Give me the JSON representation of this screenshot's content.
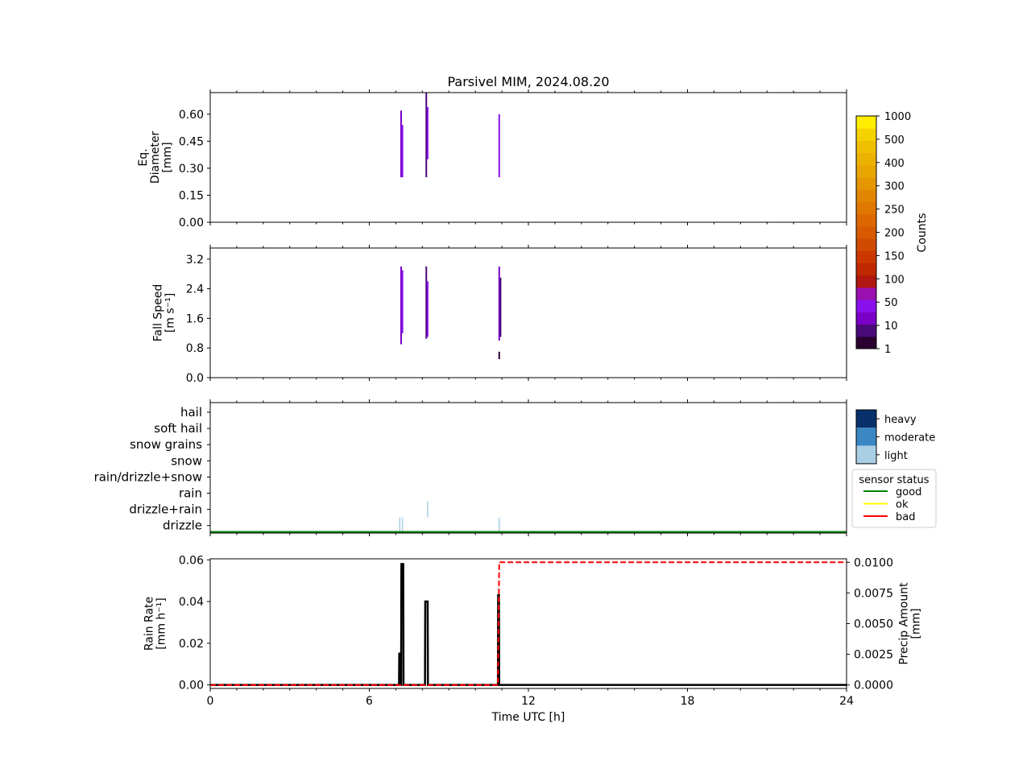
{
  "title": "Parsivel MIM, 2024.08.20",
  "chart_data": [
    {
      "panel": "diameter",
      "type": "heatmap",
      "ylabel_lines": [
        "Eq.",
        "Diameter",
        "[mm]"
      ],
      "ylim": [
        0,
        0.72
      ],
      "yticks": [
        0.0,
        0.15,
        0.3,
        0.45,
        0.6
      ],
      "ytick_labels": [
        "0.00",
        "0.15",
        "0.30",
        "0.45",
        "0.60"
      ],
      "xlim": [
        0,
        24
      ],
      "bins": [
        {
          "t": 7.2,
          "y0": 0.25,
          "y1": 0.62,
          "color": "#7b00c8"
        },
        {
          "t": 7.25,
          "y0": 0.25,
          "y1": 0.54,
          "color": "#8a10ee"
        },
        {
          "t": 8.15,
          "y0": 0.25,
          "y1": 0.72,
          "color": "#4a0a7a"
        },
        {
          "t": 8.2,
          "y0": 0.35,
          "y1": 0.64,
          "color": "#8a10ee"
        },
        {
          "t": 10.9,
          "y0": 0.25,
          "y1": 0.6,
          "color": "#8a10ee"
        }
      ]
    },
    {
      "panel": "fallspeed",
      "type": "heatmap",
      "ylabel_lines": [
        "Fall Speed",
        "[m s⁻¹]"
      ],
      "ylim": [
        0,
        3.5
      ],
      "yticks": [
        0.0,
        0.8,
        1.6,
        2.4,
        3.2
      ],
      "ytick_labels": [
        "0.0",
        "0.8",
        "1.6",
        "2.4",
        "3.2"
      ],
      "xlim": [
        0,
        24
      ],
      "bins": [
        {
          "t": 7.2,
          "y0": 0.9,
          "y1": 3.0,
          "color": "#7b00c8"
        },
        {
          "t": 7.25,
          "y0": 1.2,
          "y1": 2.9,
          "color": "#8a10ee"
        },
        {
          "t": 8.15,
          "y0": 1.05,
          "y1": 3.0,
          "color": "#4a0a7a"
        },
        {
          "t": 8.2,
          "y0": 1.1,
          "y1": 2.6,
          "color": "#8a10ee"
        },
        {
          "t": 10.9,
          "y0": 1.0,
          "y1": 3.0,
          "color": "#7b00c8"
        },
        {
          "t": 10.95,
          "y0": 1.1,
          "y1": 2.7,
          "color": "#4a0a7a"
        },
        {
          "t": 10.9,
          "y0": 0.5,
          "y1": 0.7,
          "color": "#2a0030"
        }
      ]
    },
    {
      "panel": "precip_type",
      "type": "heatmap",
      "categories": [
        "hail",
        "soft hail",
        "snow grains",
        "snow",
        "rain/drizzle+snow",
        "rain",
        "drizzle+rain",
        "drizzle"
      ],
      "xlim": [
        0,
        24
      ],
      "intensity_legend": [
        {
          "label": "heavy",
          "color": "#08306b"
        },
        {
          "label": "moderate",
          "color": "#3a87c4"
        },
        {
          "label": "light",
          "color": "#a9cfe5"
        }
      ],
      "events": [
        {
          "t": 7.15,
          "category": "drizzle",
          "intensity": "light"
        },
        {
          "t": 7.25,
          "category": "drizzle",
          "intensity": "light"
        },
        {
          "t": 8.2,
          "category": "drizzle+rain",
          "intensity": "light"
        },
        {
          "t": 10.9,
          "category": "drizzle",
          "intensity": "light"
        }
      ],
      "sensor_status": {
        "legend_title": "sensor status",
        "entries": [
          {
            "label": "good",
            "color": "#008000"
          },
          {
            "label": "ok",
            "color": "#ffff00"
          },
          {
            "label": "bad",
            "color": "#ff0000"
          }
        ],
        "line": {
          "status": "good",
          "from": 0,
          "to": 24
        }
      }
    },
    {
      "panel": "rainrate",
      "type": "line",
      "xlabel": "Time UTC [h]",
      "xlim": [
        0,
        24
      ],
      "xticks": [
        0,
        6,
        12,
        18,
        24
      ],
      "xtick_labels": [
        "0",
        "6",
        "12",
        "18",
        "24"
      ],
      "ylabel_lines": [
        "Rain Rate",
        "[mm h⁻¹]"
      ],
      "ylim": [
        -0.0017,
        0.0605
      ],
      "yticks": [
        0.0,
        0.02,
        0.04,
        0.06
      ],
      "ytick_labels": [
        "0.00",
        "0.02",
        "0.04",
        "0.06"
      ],
      "y2label_lines": [
        "Precip Amount",
        "[mm]"
      ],
      "y2lim": [
        -0.00028,
        0.01028
      ],
      "y2ticks": [
        0.0,
        0.0025,
        0.005,
        0.0075,
        0.01
      ],
      "y2tick_labels": [
        "0.0000",
        "0.0025",
        "0.0050",
        "0.0075",
        "0.0100"
      ],
      "series": [
        {
          "axis": "left",
          "color": "#000000",
          "style": "solid",
          "x": [
            0,
            7.12,
            7.13,
            7.16,
            7.17,
            7.2,
            7.21,
            7.28,
            7.29,
            8.1,
            8.11,
            8.2,
            8.21,
            10.85,
            10.86,
            10.89,
            10.9,
            24
          ],
          "y": [
            0,
            0,
            0.015,
            0.015,
            0,
            0,
            0.058,
            0.058,
            0,
            0,
            0.04,
            0.04,
            0,
            0,
            0.043,
            0.043,
            0,
            0
          ]
        },
        {
          "axis": "right",
          "color": "#ff0000",
          "style": "dashed",
          "x": [
            0,
            10.85,
            10.9,
            24
          ],
          "y": [
            0,
            0,
            0.01,
            0.01
          ]
        }
      ]
    }
  ],
  "colorbar": {
    "label": "Counts",
    "tick_labels": [
      "1",
      "10",
      "50",
      "100",
      "150",
      "200",
      "250",
      "300",
      "400",
      "500",
      "1000"
    ],
    "colors": [
      "#2a0030",
      "#4a0a7a",
      "#7b00c8",
      "#8a10ee",
      "#9a10b0",
      "#b01810",
      "#c02800",
      "#ca3800",
      "#d04a00",
      "#d85a00",
      "#de6800",
      "#e07800",
      "#e28600",
      "#e69600",
      "#eaa600",
      "#ecb200",
      "#f0c000",
      "#f4d200",
      "#ffee00"
    ]
  }
}
